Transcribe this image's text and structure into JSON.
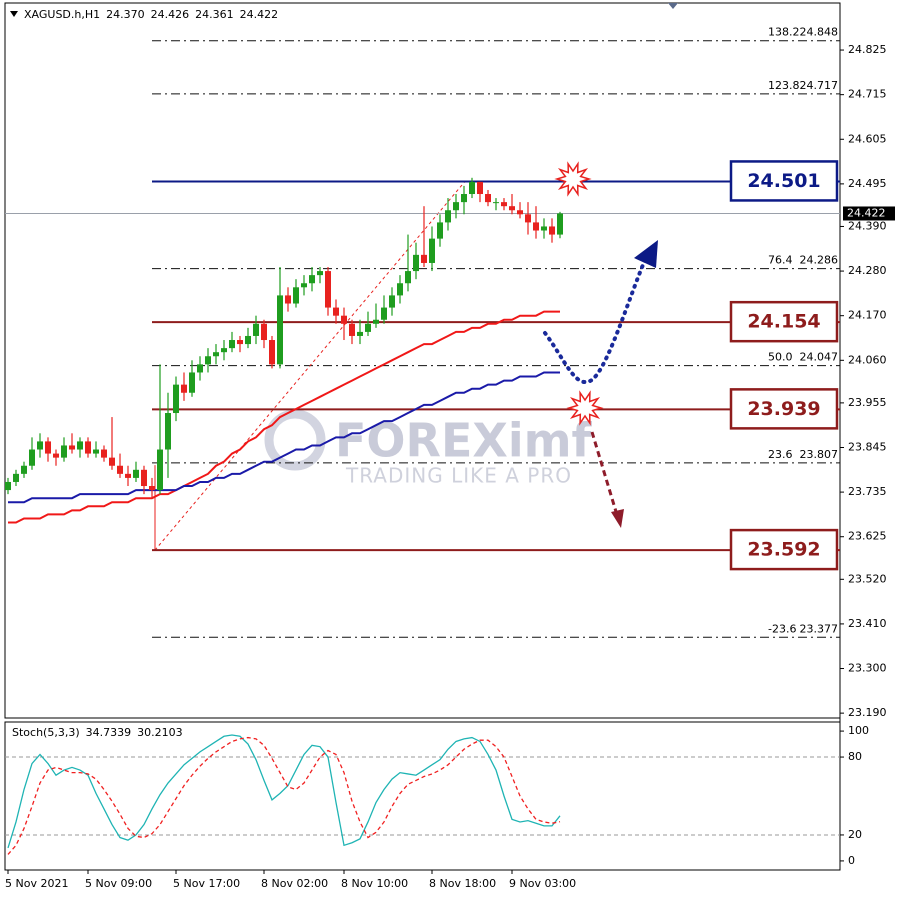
{
  "chart_data": [
    {
      "type": "candlestick",
      "title": "XAGUSD.h,H1",
      "header_labels": [
        "24.370",
        "24.426",
        "24.361",
        "24.422"
      ],
      "categories": [
        "5 Nov 2021",
        null,
        null,
        null,
        null,
        null,
        null,
        null,
        null,
        null,
        "5 Nov 09:00",
        null,
        null,
        null,
        null,
        null,
        null,
        null,
        null,
        null,
        null,
        "5 Nov 17:00",
        null,
        null,
        null,
        null,
        null,
        null,
        null,
        null,
        null,
        null,
        "8 Nov 02:00",
        null,
        null,
        null,
        null,
        null,
        null,
        null,
        null,
        null,
        "8 Nov 10:00",
        null,
        null,
        null,
        null,
        null,
        null,
        null,
        null,
        null,
        null,
        "8 Nov 18:00",
        null,
        null,
        null,
        null,
        null,
        null,
        null,
        null,
        null,
        "9 Nov 03:00",
        null,
        null,
        null,
        null,
        null,
        null
      ],
      "ohlc": [
        [
          23.74,
          23.77,
          23.73,
          23.76
        ],
        [
          23.76,
          23.79,
          23.75,
          23.78
        ],
        [
          23.78,
          23.81,
          23.77,
          23.8
        ],
        [
          23.8,
          23.87,
          23.79,
          23.84
        ],
        [
          23.84,
          23.88,
          23.82,
          23.86
        ],
        [
          23.86,
          23.87,
          23.81,
          23.83
        ],
        [
          23.83,
          23.84,
          23.8,
          23.82
        ],
        [
          23.82,
          23.87,
          23.81,
          23.85
        ],
        [
          23.85,
          23.88,
          23.83,
          23.84
        ],
        [
          23.84,
          23.87,
          23.82,
          23.86
        ],
        [
          23.86,
          23.87,
          23.82,
          23.83
        ],
        [
          23.83,
          23.86,
          23.82,
          23.84
        ],
        [
          23.84,
          23.85,
          23.81,
          23.82
        ],
        [
          23.82,
          23.92,
          23.79,
          23.8
        ],
        [
          23.8,
          23.83,
          23.77,
          23.78
        ],
        [
          23.78,
          23.8,
          23.75,
          23.77
        ],
        [
          23.77,
          23.81,
          23.76,
          23.79
        ],
        [
          23.79,
          23.8,
          23.73,
          23.75
        ],
        [
          23.75,
          23.77,
          23.72,
          23.74
        ],
        [
          23.74,
          24.05,
          23.73,
          23.84
        ],
        [
          23.84,
          23.98,
          23.77,
          23.93
        ],
        [
          23.93,
          24.02,
          23.91,
          24.0
        ],
        [
          24.0,
          24.03,
          23.96,
          23.98
        ],
        [
          23.98,
          24.06,
          23.97,
          24.03
        ],
        [
          24.03,
          24.07,
          24.01,
          24.05
        ],
        [
          24.05,
          24.09,
          24.03,
          24.07
        ],
        [
          24.07,
          24.1,
          24.05,
          24.08
        ],
        [
          24.08,
          24.11,
          24.06,
          24.09
        ],
        [
          24.09,
          24.13,
          24.08,
          24.11
        ],
        [
          24.11,
          24.12,
          24.08,
          24.1
        ],
        [
          24.1,
          24.14,
          24.09,
          24.12
        ],
        [
          24.12,
          24.17,
          24.1,
          24.15
        ],
        [
          24.15,
          24.16,
          24.09,
          24.11
        ],
        [
          24.11,
          24.12,
          24.04,
          24.05
        ],
        [
          24.05,
          24.29,
          24.04,
          24.22
        ],
        [
          24.22,
          24.24,
          24.18,
          24.2
        ],
        [
          24.2,
          24.26,
          24.19,
          24.24
        ],
        [
          24.24,
          24.27,
          24.22,
          24.25
        ],
        [
          24.25,
          24.29,
          24.23,
          24.27
        ],
        [
          24.27,
          24.29,
          24.25,
          24.28
        ],
        [
          24.28,
          24.29,
          24.17,
          24.19
        ],
        [
          24.19,
          24.21,
          24.15,
          24.17
        ],
        [
          24.17,
          24.19,
          24.11,
          24.15
        ],
        [
          24.15,
          24.16,
          24.1,
          24.12
        ],
        [
          24.12,
          24.16,
          24.1,
          24.13
        ],
        [
          24.13,
          24.18,
          24.12,
          24.15
        ],
        [
          24.15,
          24.2,
          24.14,
          24.16
        ],
        [
          24.16,
          24.22,
          24.15,
          24.19
        ],
        [
          24.19,
          24.24,
          24.17,
          24.22
        ],
        [
          24.22,
          24.27,
          24.2,
          24.25
        ],
        [
          24.25,
          24.37,
          24.23,
          24.28
        ],
        [
          24.28,
          24.35,
          24.26,
          24.32
        ],
        [
          24.32,
          24.44,
          24.29,
          24.3
        ],
        [
          24.3,
          24.39,
          24.28,
          24.36
        ],
        [
          24.36,
          24.42,
          24.34,
          24.4
        ],
        [
          24.4,
          24.46,
          24.38,
          24.43
        ],
        [
          24.43,
          24.47,
          24.41,
          24.45
        ],
        [
          24.45,
          24.49,
          24.42,
          24.47
        ],
        [
          24.47,
          24.51,
          24.46,
          24.5
        ],
        [
          24.5,
          24.5,
          24.45,
          24.47
        ],
        [
          24.47,
          24.48,
          24.44,
          24.45
        ],
        [
          24.45,
          24.46,
          24.43,
          24.45
        ],
        [
          24.45,
          24.46,
          24.43,
          24.44
        ],
        [
          24.44,
          24.47,
          24.42,
          24.43
        ],
        [
          24.43,
          24.45,
          24.41,
          24.42
        ],
        [
          24.42,
          24.45,
          24.37,
          24.4
        ],
        [
          24.4,
          24.44,
          24.36,
          24.38
        ],
        [
          24.38,
          24.41,
          24.36,
          24.39
        ],
        [
          24.39,
          24.41,
          24.35,
          24.37
        ],
        [
          24.37,
          24.426,
          24.361,
          24.422
        ]
      ],
      "up_color": "#1f9d1f",
      "down_color": "#e8221f",
      "series": [
        {
          "color": "#f01818",
          "values": [
            23.66,
            23.66,
            23.67,
            23.67,
            23.67,
            23.68,
            23.68,
            23.68,
            23.69,
            23.69,
            23.7,
            23.7,
            23.7,
            23.71,
            23.71,
            23.71,
            23.72,
            23.72,
            23.72,
            23.73,
            23.73,
            23.74,
            23.75,
            23.76,
            23.77,
            23.78,
            23.8,
            23.81,
            23.83,
            23.84,
            23.86,
            23.87,
            23.89,
            23.9,
            23.92,
            23.93,
            23.94,
            23.95,
            23.96,
            23.97,
            23.98,
            23.99,
            24.0,
            24.01,
            24.02,
            24.03,
            24.04,
            24.05,
            24.06,
            24.07,
            24.08,
            24.09,
            24.1,
            24.1,
            24.11,
            24.12,
            24.13,
            24.13,
            24.14,
            24.14,
            24.15,
            24.15,
            24.16,
            24.16,
            24.17,
            24.17,
            24.17,
            24.18,
            24.18,
            24.18
          ]
        },
        {
          "color": "#1a1aa8",
          "values": [
            23.71,
            23.71,
            23.71,
            23.72,
            23.72,
            23.72,
            23.72,
            23.72,
            23.72,
            23.73,
            23.73,
            23.73,
            23.73,
            23.73,
            23.73,
            23.73,
            23.74,
            23.74,
            23.74,
            23.74,
            23.74,
            23.74,
            23.75,
            23.75,
            23.76,
            23.76,
            23.77,
            23.77,
            23.78,
            23.78,
            23.79,
            23.8,
            23.81,
            23.81,
            23.82,
            23.83,
            23.84,
            23.84,
            23.85,
            23.85,
            23.86,
            23.87,
            23.87,
            23.88,
            23.88,
            23.89,
            23.9,
            23.91,
            23.91,
            23.92,
            23.93,
            23.94,
            23.95,
            23.95,
            23.96,
            23.97,
            23.98,
            23.98,
            23.99,
            23.99,
            24.0,
            24.0,
            24.01,
            24.01,
            24.02,
            24.02,
            24.02,
            24.03,
            24.03,
            24.03
          ]
        }
      ],
      "levels": [
        {
          "value": 24.501,
          "color": "#0c1a86"
        },
        {
          "value": 24.154,
          "color": "#8e1c1c"
        },
        {
          "value": 23.939,
          "color": "#8e1c1c"
        },
        {
          "value": 23.592,
          "color": "#8e1c1c"
        }
      ],
      "fibonacci": [
        {
          "label": "138.2",
          "value": 24.848
        },
        {
          "label": "123.8",
          "value": 24.717
        },
        {
          "label": "76.4",
          "value": 24.286
        },
        {
          "label": "50.0",
          "value": 24.047
        },
        {
          "label": "23.6",
          "value": 23.807
        },
        {
          "label": "-23.6",
          "value": 23.377
        }
      ],
      "ylim": [
        23.178,
        24.941
      ],
      "yticks": [
        24.825,
        24.715,
        24.605,
        24.495,
        {
          "value": 24.39,
          "label": "24.390"
        },
        {
          "value": 24.28,
          "label": "24.280"
        },
        {
          "value": 24.17,
          "label": "24.170"
        },
        {
          "value": 24.06,
          "label": "24.060"
        },
        23.955,
        23.845,
        23.735,
        23.625,
        {
          "value": 23.52,
          "label": "23.520"
        },
        {
          "value": 23.41,
          "label": "23.410"
        },
        {
          "value": 23.3,
          "label": "23.300"
        },
        {
          "value": 23.19,
          "label": "23.190"
        }
      ]
    },
    {
      "type": "line",
      "title": "Stoch(5,3,3)",
      "series": [
        {
          "color": "#1fb4b4",
          "values": [
            10,
            30,
            55,
            75,
            82,
            75,
            66,
            70,
            72,
            70,
            66,
            52,
            40,
            28,
            18,
            16,
            20,
            28,
            40,
            51,
            60,
            67,
            74,
            79,
            84,
            88,
            92,
            96,
            97,
            96,
            90,
            78,
            62,
            47,
            52,
            58,
            70,
            82,
            89,
            88,
            80,
            45,
            12,
            14,
            17,
            30,
            45,
            55,
            63,
            68,
            67,
            66,
            70,
            74,
            78,
            86,
            92,
            94,
            95,
            92,
            82,
            70,
            50,
            32,
            30,
            31,
            29,
            27,
            27,
            34.7339
          ]
        },
        {
          "color": "#f02020",
          "dashed": true,
          "values": [
            5,
            12,
            25,
            42,
            60,
            70,
            72,
            70,
            68,
            68,
            67,
            63,
            55,
            46,
            36,
            25,
            19,
            18,
            21,
            28,
            38,
            48,
            58,
            66,
            73,
            79,
            84,
            88,
            92,
            94,
            95,
            94,
            89,
            79,
            68,
            57,
            55,
            60,
            70,
            80,
            85,
            82,
            68,
            46,
            30,
            18,
            22,
            30,
            42,
            52,
            59,
            62,
            65,
            67,
            70,
            74,
            80,
            86,
            90,
            93,
            93,
            88,
            80,
            65,
            50,
            40,
            32,
            30,
            29,
            30.2103
          ]
        }
      ],
      "ylim": [
        -7,
        107
      ],
      "yticks": [
        0,
        20,
        80,
        100
      ],
      "levels": [
        20,
        80
      ]
    }
  ],
  "watermark": {
    "brand": "FOREXimf",
    "tagline": "TRADING LIKE A PRO"
  }
}
